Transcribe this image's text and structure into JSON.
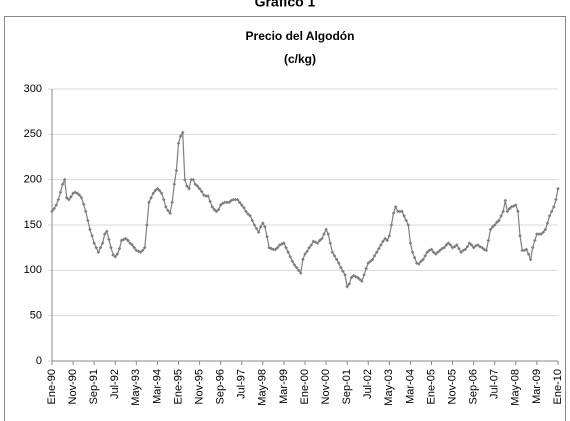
{
  "chart_data": {
    "type": "line",
    "heading": "Gráfico 1",
    "title": "Precio del Algodón",
    "subtitle": "(c/kg)",
    "categories": [
      "Ene-90",
      null,
      null,
      null,
      null,
      null,
      null,
      null,
      null,
      null,
      "Nov-90",
      null,
      null,
      null,
      null,
      null,
      null,
      null,
      null,
      null,
      "Sep-91",
      null,
      null,
      null,
      null,
      null,
      null,
      null,
      null,
      null,
      "Jul-92",
      null,
      null,
      null,
      null,
      null,
      null,
      null,
      null,
      null,
      "May-93",
      null,
      null,
      null,
      null,
      null,
      null,
      null,
      null,
      null,
      "Mar-94",
      null,
      null,
      null,
      null,
      null,
      null,
      null,
      null,
      null,
      "Ene-95",
      null,
      null,
      null,
      null,
      null,
      null,
      null,
      null,
      null,
      "Nov-95",
      null,
      null,
      null,
      null,
      null,
      null,
      null,
      null,
      null,
      "Sep-96",
      null,
      null,
      null,
      null,
      null,
      null,
      null,
      null,
      null,
      "Jul-97",
      null,
      null,
      null,
      null,
      null,
      null,
      null,
      null,
      null,
      "May-98",
      null,
      null,
      null,
      null,
      null,
      null,
      null,
      null,
      null,
      "Mar-99",
      null,
      null,
      null,
      null,
      null,
      null,
      null,
      null,
      null,
      "Ene-00",
      null,
      null,
      null,
      null,
      null,
      null,
      null,
      null,
      null,
      "Nov-00",
      null,
      null,
      null,
      null,
      null,
      null,
      null,
      null,
      null,
      "Sep-01",
      null,
      null,
      null,
      null,
      null,
      null,
      null,
      null,
      null,
      "Jul-02",
      null,
      null,
      null,
      null,
      null,
      null,
      null,
      null,
      null,
      "May-03",
      null,
      null,
      null,
      null,
      null,
      null,
      null,
      null,
      null,
      "Mar-04",
      null,
      null,
      null,
      null,
      null,
      null,
      null,
      null,
      null,
      "Ene-05",
      null,
      null,
      null,
      null,
      null,
      null,
      null,
      null,
      null,
      "Nov-05",
      null,
      null,
      null,
      null,
      null,
      null,
      null,
      null,
      null,
      "Sep-06",
      null,
      null,
      null,
      null,
      null,
      null,
      null,
      null,
      null,
      "Jul-07",
      null,
      null,
      null,
      null,
      null,
      null,
      null,
      null,
      null,
      "May-08",
      null,
      null,
      null,
      null,
      null,
      null,
      null,
      null,
      null,
      "Mar-09",
      null,
      null,
      null,
      null,
      null,
      null,
      null,
      null,
      null,
      "Ene-10"
    ],
    "values": [
      165,
      168,
      172,
      178,
      186,
      195,
      200,
      180,
      178,
      181,
      185,
      186,
      185,
      183,
      180,
      173,
      165,
      155,
      145,
      138,
      130,
      125,
      120,
      125,
      130,
      140,
      143,
      134,
      125,
      117,
      115,
      118,
      124,
      133,
      134,
      135,
      133,
      130,
      128,
      125,
      122,
      121,
      120,
      122,
      125,
      150,
      175,
      180,
      185,
      188,
      190,
      188,
      185,
      178,
      170,
      166,
      163,
      175,
      195,
      210,
      240,
      248,
      252,
      200,
      193,
      190,
      200,
      200,
      195,
      193,
      190,
      187,
      183,
      182,
      182,
      176,
      170,
      167,
      165,
      167,
      172,
      174,
      175,
      175,
      175,
      177,
      178,
      178,
      178,
      175,
      172,
      169,
      165,
      162,
      160,
      155,
      150,
      146,
      142,
      148,
      152,
      148,
      137,
      125,
      124,
      123,
      123,
      125,
      128,
      129,
      130,
      125,
      120,
      115,
      110,
      106,
      103,
      100,
      97,
      112,
      118,
      121,
      125,
      128,
      132,
      131,
      130,
      133,
      135,
      140,
      145,
      140,
      130,
      120,
      116,
      112,
      108,
      103,
      99,
      95,
      82,
      85,
      92,
      94,
      93,
      92,
      90,
      88,
      95,
      102,
      108,
      110,
      112,
      116,
      120,
      124,
      128,
      132,
      135,
      133,
      138,
      150,
      163,
      170,
      165,
      165,
      165,
      160,
      155,
      150,
      130,
      120,
      114,
      108,
      107,
      110,
      112,
      116,
      120,
      122,
      123,
      120,
      118,
      120,
      122,
      124,
      125,
      128,
      130,
      128,
      125,
      126,
      128,
      124,
      120,
      122,
      123,
      126,
      130,
      128,
      125,
      127,
      128,
      126,
      125,
      123,
      122,
      133,
      145,
      148,
      150,
      153,
      155,
      160,
      165,
      177,
      165,
      168,
      170,
      171,
      172,
      165,
      138,
      122,
      122,
      123,
      118,
      112,
      125,
      133,
      140,
      140,
      140,
      142,
      145,
      152,
      160,
      165,
      170,
      178,
      190
    ],
    "color": "#7f7f7f",
    "ylim": [
      0,
      300
    ],
    "yticks": [
      0,
      50,
      100,
      150,
      200,
      250,
      300
    ],
    "grid": true
  }
}
